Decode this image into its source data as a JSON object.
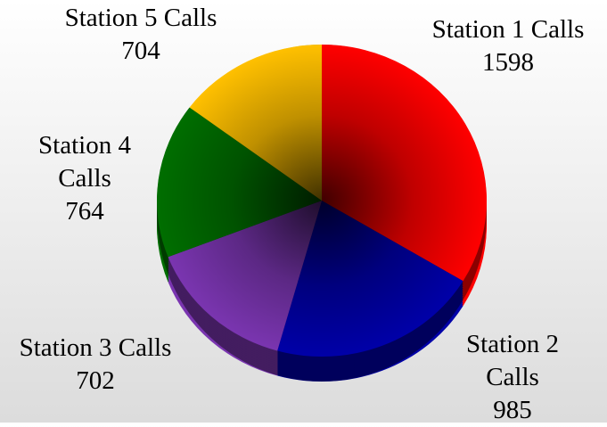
{
  "chart_data": {
    "type": "pie",
    "categories": [
      "Station 1 Calls",
      "Station 2 Calls",
      "Station 3 Calls",
      "Station 4 Calls",
      "Station 5 Calls"
    ],
    "values": [
      1598,
      985,
      702,
      764,
      704
    ],
    "colors": [
      "#ff0000",
      "#0000a8",
      "#7a35b0",
      "#006e00",
      "#ffc000"
    ]
  }
}
